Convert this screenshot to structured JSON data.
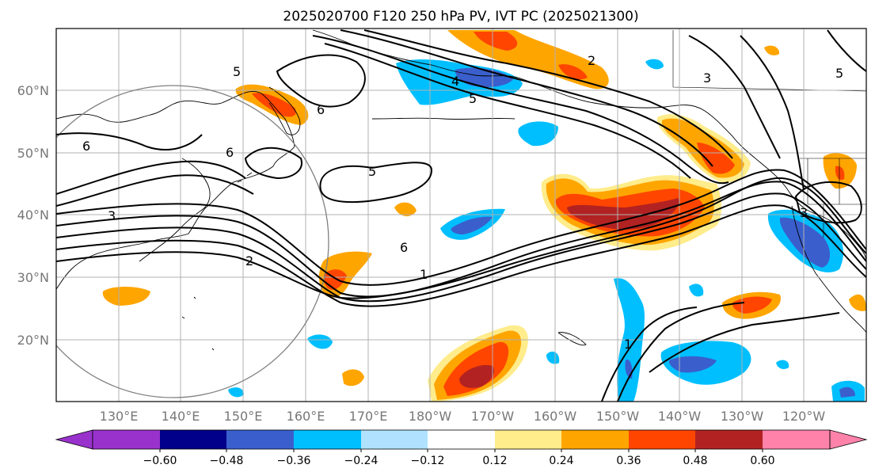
{
  "title": "2025020700 F120 250 hPa PV, IVT PC (2025021300)",
  "map": {
    "lon_labels": [
      "130°E",
      "140°E",
      "150°E",
      "160°E",
      "170°E",
      "180°W",
      "170°W",
      "160°W",
      "150°W",
      "140°W",
      "130°W",
      "120°W"
    ],
    "lat_labels": [
      "20°N",
      "30°N",
      "40°N",
      "50°N",
      "60°N"
    ],
    "contour_labels": [
      "5",
      "4",
      "5",
      "6",
      "6",
      "5",
      "3",
      "2",
      "6",
      "1",
      "2",
      "3",
      "1",
      "3",
      "6",
      "5"
    ],
    "gridlines": "on"
  },
  "colorbar": {
    "tick_labels": [
      "−0.60",
      "−0.48",
      "−0.36",
      "−0.24",
      "−0.12",
      "0.12",
      "0.24",
      "0.36",
      "0.48",
      "0.60"
    ],
    "colors": [
      "#9932CC",
      "#00008B",
      "#3A5FCD",
      "#00BFFF",
      "#B0E2FF",
      "#FFFFFF",
      "#FFEC8B",
      "#FFA500",
      "#FF4500",
      "#B22222",
      "#FF82AB"
    ],
    "extend": "both"
  },
  "colors": {
    "pos_fill_1": "#FFEC8B",
    "pos_fill_2": "#FFA500",
    "pos_fill_3": "#FF4500",
    "pos_fill_4": "#B22222",
    "neg_fill_1": "#B0E2FF",
    "neg_fill_2": "#00BFFF",
    "neg_fill_3": "#3A5FCD"
  }
}
